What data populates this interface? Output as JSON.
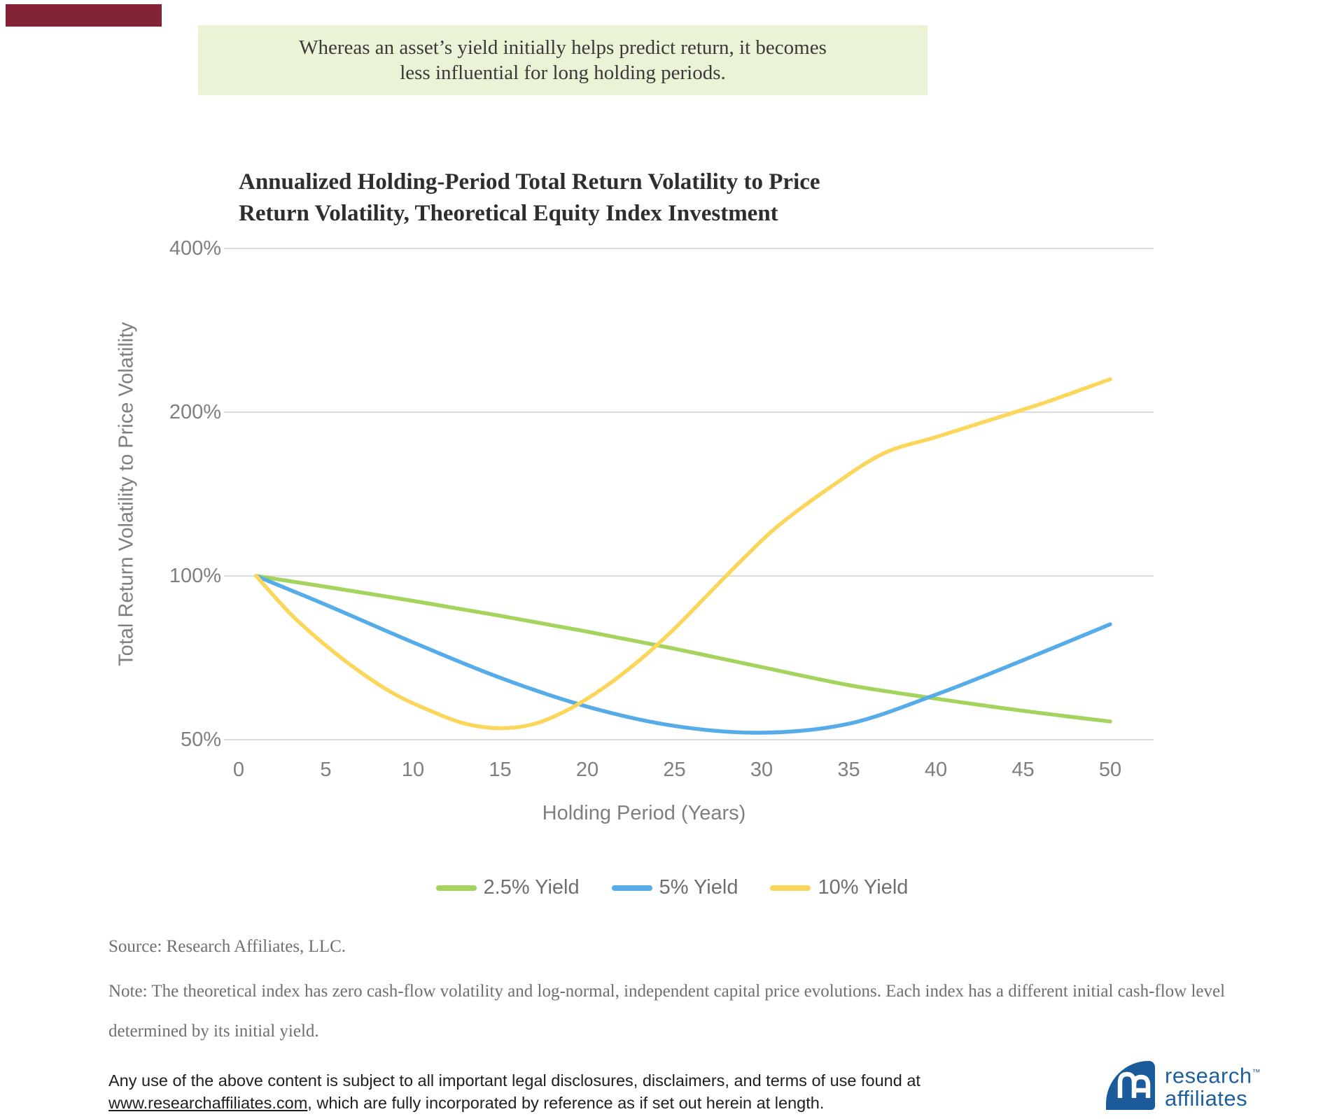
{
  "banner": {
    "line1": "Whereas an asset’s yield initially helps predict return, it becomes",
    "line2": "less influential for long holding periods."
  },
  "chart": {
    "title_line1": "Annualized Holding-Period Total Return Volatility to Price",
    "title_line2": "Return Volatility, Theoretical Equity Index Investment"
  },
  "chart_data": {
    "type": "line",
    "title": "Annualized Holding-Period Total Return Volatility to Price Return Volatility, Theoretical Equity Index Investment",
    "xlabel": "Holding Period (Years)",
    "ylabel": "Total Return Volatility to Price Volatility",
    "x_ticks": [
      0,
      5,
      10,
      15,
      20,
      25,
      30,
      35,
      40,
      45,
      50
    ],
    "y_ticks": [
      {
        "value": 50,
        "label": "50%"
      },
      {
        "value": 100,
        "label": "100%"
      },
      {
        "value": 200,
        "label": "200%"
      },
      {
        "value": 400,
        "label": "400%"
      }
    ],
    "y_scale": "log2",
    "x_range": [
      0,
      50
    ],
    "grid": "horizontal",
    "legend_position": "bottom",
    "series": [
      {
        "name": "2.5% Yield",
        "color": "#a4d35e",
        "x": [
          1,
          5,
          10,
          15,
          20,
          25,
          30,
          35,
          40,
          45,
          50
        ],
        "y": [
          100,
          95.5,
          90,
          84.5,
          79,
          73.5,
          68,
          63,
          59.5,
          56.5,
          54
        ]
      },
      {
        "name": "5% Yield",
        "color": "#55ace8",
        "x": [
          1,
          5,
          10,
          15,
          20,
          25,
          30,
          35,
          40,
          45,
          50
        ],
        "y": [
          100,
          88.5,
          75.5,
          65,
          57.5,
          53,
          51.5,
          53.5,
          60.5,
          70,
          81.5
        ]
      },
      {
        "name": "10% Yield",
        "color": "#fcd65b",
        "x": [
          1,
          3,
          5,
          7,
          9,
          11,
          13,
          15,
          17,
          19,
          21,
          23,
          25,
          27,
          29,
          31,
          34,
          37,
          40,
          43,
          46,
          48,
          50
        ],
        "y": [
          100,
          85,
          74.5,
          66.5,
          60.5,
          56.5,
          53.5,
          52.5,
          53.5,
          57,
          62.5,
          70,
          80,
          93,
          108,
          124,
          146,
          168,
          180,
          193,
          207,
          218,
          230
        ]
      }
    ]
  },
  "notes": {
    "source": "Source: Research Affiliates, LLC.",
    "note": "Note: The theoretical index has zero cash-flow volatility and log-normal, independent capital price evolutions. Each index has a different initial cash-flow level determined by its initial yield."
  },
  "legal": {
    "line1": "Any use of the above content is subject to all important legal disclosures, disclaimers, and terms of use found at",
    "link": "www.researchaffiliates.com",
    "rest": ", which are fully incorporated by reference as if set out herein at length."
  },
  "logo": {
    "line1": "research",
    "tm": "™",
    "line2": "affiliates"
  }
}
